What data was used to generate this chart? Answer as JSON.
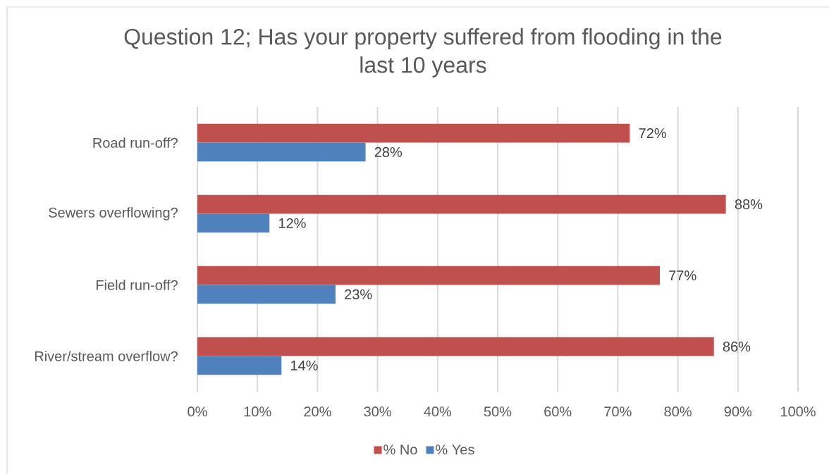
{
  "chart_data": {
    "type": "bar",
    "orientation": "horizontal",
    "title": "Question 12; Has your property suffered from flooding in the last 10 years",
    "categories": [
      "Road run-off?",
      "Sewers overflowing?",
      "Field run-off?",
      "River/stream overflow?"
    ],
    "series": [
      {
        "name": "% No",
        "color": "#c0504d",
        "values": [
          72,
          88,
          77,
          86
        ],
        "value_labels": [
          "72%",
          "88%",
          "77%",
          "86%"
        ]
      },
      {
        "name": "% Yes",
        "color": "#4f81bd",
        "values": [
          28,
          12,
          23,
          14
        ],
        "value_labels": [
          "28%",
          "12%",
          "23%",
          "14%"
        ]
      }
    ],
    "xlim": [
      0,
      100
    ],
    "xticks": [
      {
        "value": 0,
        "label": "0%"
      },
      {
        "value": 10,
        "label": "10%"
      },
      {
        "value": 20,
        "label": "20%"
      },
      {
        "value": 30,
        "label": "30%"
      },
      {
        "value": 40,
        "label": "40%"
      },
      {
        "value": 50,
        "label": "50%"
      },
      {
        "value": 60,
        "label": "60%"
      },
      {
        "value": 70,
        "label": "70%"
      },
      {
        "value": 80,
        "label": "80%"
      },
      {
        "value": 90,
        "label": "90%"
      },
      {
        "value": 100,
        "label": "100%"
      }
    ],
    "grid": "x",
    "legend": "bottom"
  }
}
